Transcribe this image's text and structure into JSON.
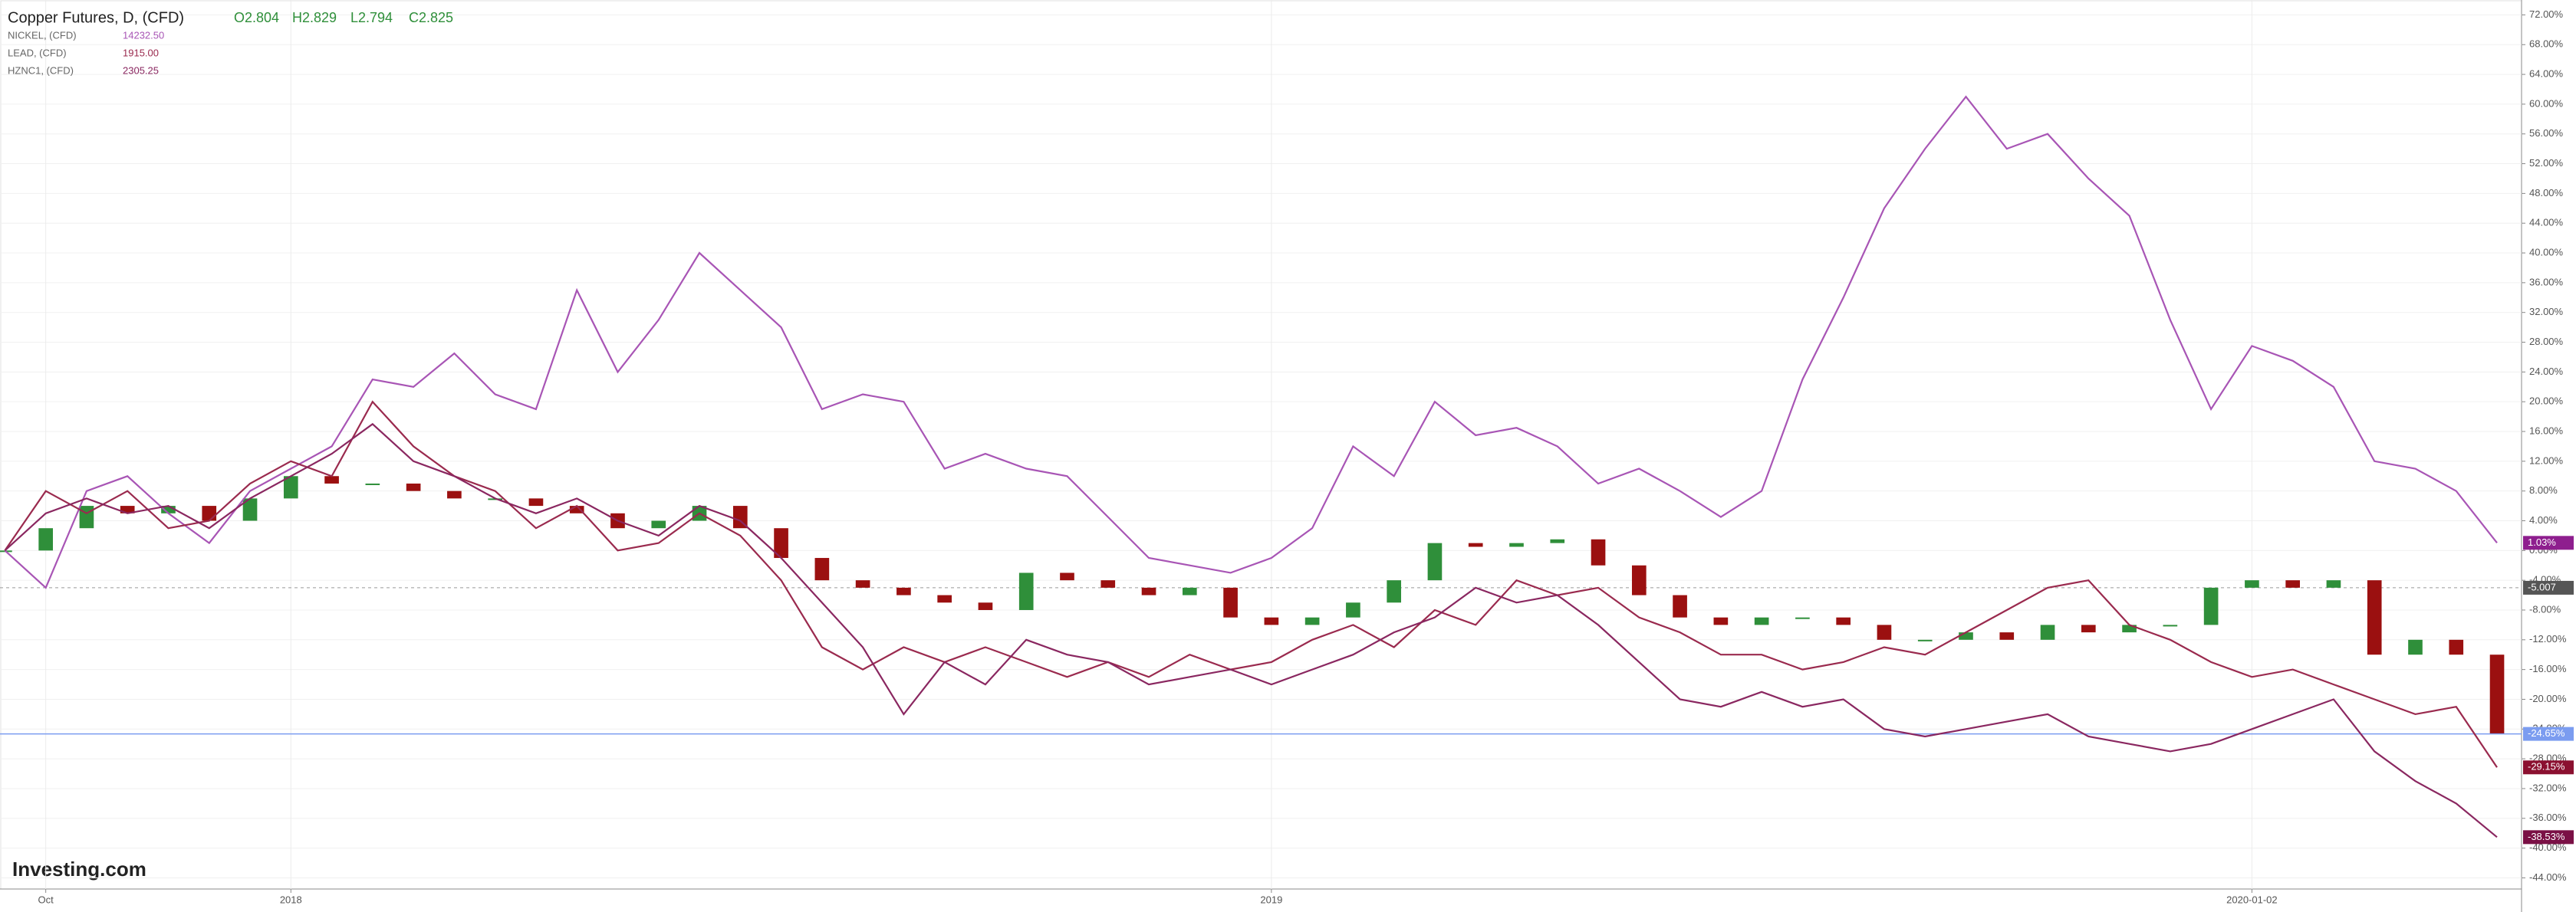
{
  "chart_data": {
    "type": "line",
    "watermark": "Investing.com",
    "x": [
      -0.5,
      0,
      0.5,
      1,
      1.5,
      2,
      2.5,
      3,
      3.5,
      4,
      4.5,
      5,
      5.5,
      6,
      6.5,
      7,
      7.5,
      8,
      8.5,
      9,
      9.5,
      10,
      10.5,
      11,
      11.5,
      12,
      12.5,
      13,
      13.5,
      14,
      14.5,
      15,
      15.5,
      16,
      16.5,
      17,
      17.5,
      18,
      18.5,
      19,
      19.5,
      20,
      20.5,
      21,
      21.5,
      22,
      22.5,
      23,
      23.5,
      24,
      24.5,
      25,
      25.5,
      26,
      26.5,
      27,
      27.5,
      28,
      28.5,
      29,
      29.5,
      30
    ],
    "xlim": [
      -0.56,
      30.3
    ],
    "xticks": [
      {
        "value": 0,
        "label": "Oct"
      },
      {
        "value": 3,
        "label": "2018"
      },
      {
        "value": 15,
        "label": "2019"
      },
      {
        "value": 27,
        "label": "2020-01-02"
      }
    ],
    "ylim": [
      -45.5,
      74
    ],
    "yticks": [
      {
        "value": 72,
        "label": "72.00%"
      },
      {
        "value": 68,
        "label": "68.00%"
      },
      {
        "value": 64,
        "label": "64.00%"
      },
      {
        "value": 60,
        "label": "60.00%"
      },
      {
        "value": 56,
        "label": "56.00%"
      },
      {
        "value": 52,
        "label": "52.00%"
      },
      {
        "value": 48,
        "label": "48.00%"
      },
      {
        "value": 44,
        "label": "44.00%"
      },
      {
        "value": 40,
        "label": "40.00%"
      },
      {
        "value": 36,
        "label": "36.00%"
      },
      {
        "value": 32,
        "label": "32.00%"
      },
      {
        "value": 28,
        "label": "28.00%"
      },
      {
        "value": 24,
        "label": "24.00%"
      },
      {
        "value": 20,
        "label": "20.00%"
      },
      {
        "value": 16,
        "label": "16.00%"
      },
      {
        "value": 12,
        "label": "12.00%"
      },
      {
        "value": 8,
        "label": "8.00%"
      },
      {
        "value": 4,
        "label": "4.00%"
      },
      {
        "value": 0,
        "label": "0.00%"
      },
      {
        "value": -4,
        "label": "-4.00%"
      },
      {
        "value": -8,
        "label": "-8.00%"
      },
      {
        "value": -12,
        "label": "-12.00%"
      },
      {
        "value": -16,
        "label": "-16.00%"
      },
      {
        "value": -20,
        "label": "-20.00%"
      },
      {
        "value": -24,
        "label": "-24.00%"
      },
      {
        "value": -28,
        "label": "-28.00%"
      },
      {
        "value": -32,
        "label": "-32.00%"
      },
      {
        "value": -36,
        "label": "-36.00%"
      },
      {
        "value": -40,
        "label": "-40.00%"
      },
      {
        "value": -44,
        "label": "-44.00%"
      }
    ],
    "grid": true,
    "price_line": {
      "value": -5.007,
      "label": "-5.007"
    },
    "series": [
      {
        "name": "Copper Futures, D, (CFD)",
        "style": "candles",
        "color": "#2f8f3a",
        "down_color": "#9b1010",
        "line_color": "#7b9cf0",
        "ohlc": [
          "O2.804",
          "H2.829",
          "L2.794",
          "C2.825"
        ],
        "end_label": "-24.65%",
        "values": [
          0,
          3,
          6,
          5,
          6,
          4,
          7,
          10,
          9,
          9,
          8,
          7,
          7,
          6,
          5,
          3,
          4,
          6,
          3,
          -1,
          -4,
          -5,
          -6,
          -7,
          -8,
          -3,
          -4,
          -5,
          -6,
          -5,
          -9,
          -10,
          -9,
          -7,
          -4,
          1,
          0.5,
          1,
          1.5,
          -2,
          -6,
          -9,
          -10,
          -9,
          -9,
          -10,
          -12,
          -12,
          -11,
          -12,
          -10,
          -11,
          -10,
          -10,
          -5,
          -4,
          -5,
          -4,
          -14,
          -12,
          -14,
          -24.65
        ]
      },
      {
        "name": "NICKEL, (CFD)",
        "legend_value": "14232.50",
        "color": "#a855b5",
        "end_label": "1.03%",
        "label_color": "#8e1e8e",
        "values": [
          0,
          -5,
          8,
          10,
          5,
          1,
          8,
          11,
          14,
          23,
          22,
          26.5,
          21,
          19,
          35,
          24,
          31,
          40,
          35,
          30,
          19,
          21,
          20,
          11,
          13,
          11,
          10,
          4.5,
          -1,
          -2,
          -3,
          -1,
          3,
          14,
          10,
          20,
          15.5,
          16.5,
          14,
          9,
          11,
          8,
          4.5,
          8,
          23,
          34,
          46,
          54,
          61,
          54,
          56,
          50,
          45,
          31,
          19,
          27.5,
          25.5,
          22,
          12,
          11,
          8,
          1.03
        ]
      },
      {
        "name": "LEAD, (CFD)",
        "legend_value": "1915.00",
        "color": "#9a2a4e",
        "end_label": "-29.15%",
        "label_color": "#8b1030",
        "values": [
          0,
          8,
          5,
          8,
          3,
          4,
          9,
          12,
          10,
          20,
          14,
          10,
          8,
          3,
          6,
          0,
          1,
          5,
          2,
          -4,
          -13,
          -16,
          -13,
          -15,
          -13,
          -15,
          -17,
          -15,
          -17,
          -14,
          -16,
          -15,
          -12,
          -10,
          -13,
          -8,
          -10,
          -4,
          -6,
          -5,
          -9,
          -11,
          -14,
          -14,
          -16,
          -15,
          -13,
          -14,
          -11,
          -8,
          -5,
          -4,
          -10,
          -12,
          -15,
          -17,
          -16,
          -18,
          -20,
          -22,
          -21,
          -29.15
        ]
      },
      {
        "name": "HZNC1, (CFD)",
        "legend_value": "2305.25",
        "color": "#8a2760",
        "end_label": "-38.53%",
        "label_color": "#7a1045",
        "values": [
          0,
          5,
          7,
          5,
          6,
          3,
          7,
          10,
          13,
          17,
          12,
          10,
          7,
          5,
          7,
          4,
          2,
          6,
          4,
          -1,
          -7,
          -13,
          -22,
          -15,
          -18,
          -12,
          -14,
          -15,
          -18,
          -17,
          -16,
          -18,
          -16,
          -14,
          -11,
          -9,
          -5,
          -7,
          -6,
          -10,
          -15,
          -20,
          -21,
          -19,
          -21,
          -20,
          -24,
          -25,
          -24,
          -23,
          -22,
          -25,
          -26,
          -27,
          -26,
          -24,
          -22,
          -20,
          -27,
          -31,
          -34,
          -38.53
        ]
      }
    ]
  }
}
